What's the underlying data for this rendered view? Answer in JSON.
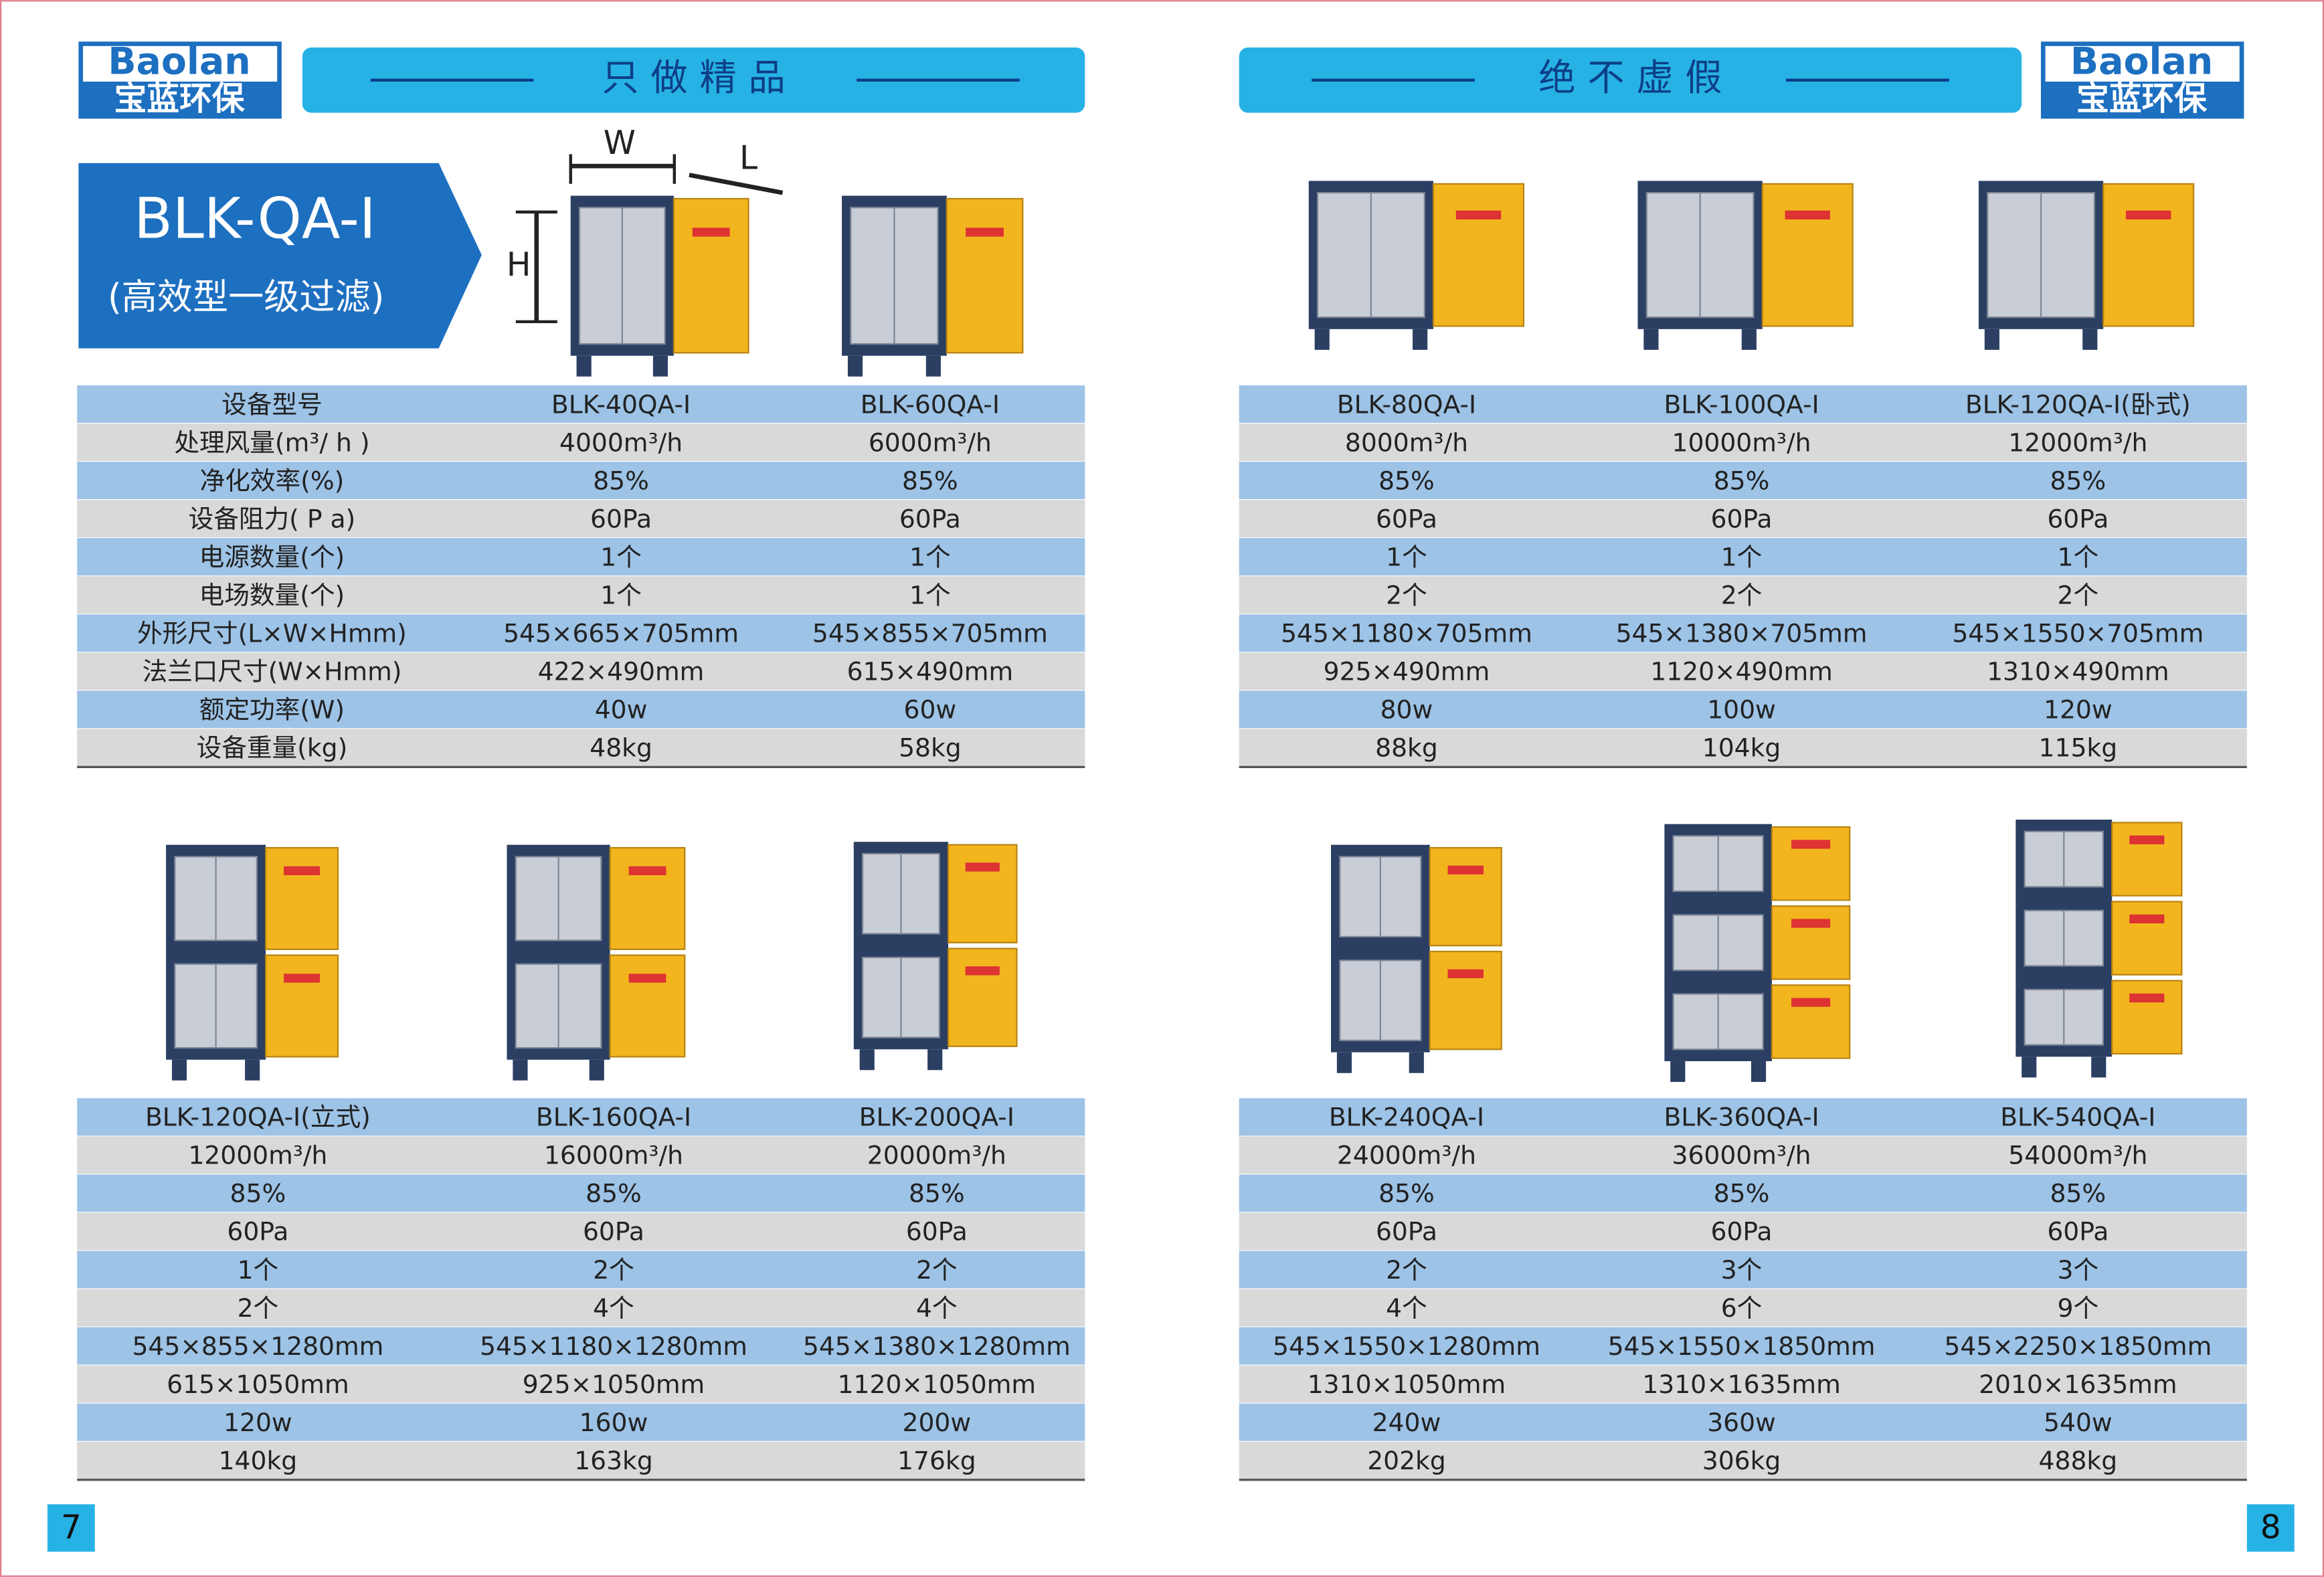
{
  "left_page": {
    "logo": {
      "latin": "Baolan",
      "chinese": "宝蓝环保"
    },
    "banner": "只 做 精 品",
    "product": {
      "title": "BLK-QA-I",
      "subtitle": "(高效型一级过滤)"
    },
    "dimension_labels": [
      "W",
      "L",
      "H"
    ],
    "page_number": "7"
  },
  "right_page": {
    "logo": {
      "latin": "Baolan",
      "chinese": "宝蓝环保"
    },
    "banner": "绝 不 虚 假",
    "page_number": "8"
  },
  "tables": [
    {
      "rows": [
        [
          "设备型号",
          "BLK-40QA-I",
          "BLK-60QA-I"
        ],
        [
          "处理风量(m³/ h )",
          "4000m³/h",
          "6000m³/h"
        ],
        [
          "净化效率(%)",
          "85%",
          "85%"
        ],
        [
          "设备阻力( P a)",
          "60Pa",
          "60Pa"
        ],
        [
          "电源数量(个)",
          "1个",
          "1个"
        ],
        [
          "电场数量(个)",
          "1个",
          "1个"
        ],
        [
          "外形尺寸(L×W×Hmm)",
          "545×665×705mm",
          "545×855×705mm"
        ],
        [
          "法兰口尺寸(W×Hmm)",
          "422×490mm",
          "615×490mm"
        ],
        [
          "额定功率(W)",
          "40w",
          "60w"
        ],
        [
          "设备重量(kg)",
          "48kg",
          "58kg"
        ]
      ]
    },
    {
      "rows": [
        [
          "BLK-80QA-I",
          "BLK-100QA-I",
          "BLK-120QA-I(卧式)"
        ],
        [
          "8000m³/h",
          "10000m³/h",
          "12000m³/h"
        ],
        [
          "85%",
          "85%",
          "85%"
        ],
        [
          "60Pa",
          "60Pa",
          "60Pa"
        ],
        [
          "1个",
          "1个",
          "1个"
        ],
        [
          "2个",
          "2个",
          "2个"
        ],
        [
          "545×1180×705mm",
          "545×1380×705mm",
          "545×1550×705mm"
        ],
        [
          "925×490mm",
          "1120×490mm",
          "1310×490mm"
        ],
        [
          "80w",
          "100w",
          "120w"
        ],
        [
          "88kg",
          "104kg",
          "115kg"
        ]
      ]
    },
    {
      "rows": [
        [
          "BLK-120QA-I(立式)",
          "BLK-160QA-I",
          "BLK-200QA-I"
        ],
        [
          "12000m³/h",
          "16000m³/h",
          "20000m³/h"
        ],
        [
          "85%",
          "85%",
          "85%"
        ],
        [
          "60Pa",
          "60Pa",
          "60Pa"
        ],
        [
          "1个",
          "2个",
          "2个"
        ],
        [
          "2个",
          "4个",
          "4个"
        ],
        [
          "545×855×1280mm",
          "545×1180×1280mm",
          "545×1380×1280mm"
        ],
        [
          "615×1050mm",
          "925×1050mm",
          "1120×1050mm"
        ],
        [
          "120w",
          "160w",
          "200w"
        ],
        [
          "140kg",
          "163kg",
          "176kg"
        ]
      ]
    },
    {
      "rows": [
        [
          "BLK-240QA-I",
          "BLK-360QA-I",
          "BLK-540QA-I"
        ],
        [
          "24000m³/h",
          "36000m³/h",
          "54000m³/h"
        ],
        [
          "85%",
          "85%",
          "85%"
        ],
        [
          "60Pa",
          "60Pa",
          "60Pa"
        ],
        [
          "2个",
          "3个",
          "3个"
        ],
        [
          "4个",
          "6个",
          "9个"
        ],
        [
          "545×1550×1280mm",
          "545×1550×1850mm",
          "545×2250×1850mm"
        ],
        [
          "1310×1050mm",
          "1310×1635mm",
          "2010×1635mm"
        ],
        [
          "240w",
          "360w",
          "540w"
        ],
        [
          "202kg",
          "306kg",
          "488kg"
        ]
      ]
    }
  ]
}
